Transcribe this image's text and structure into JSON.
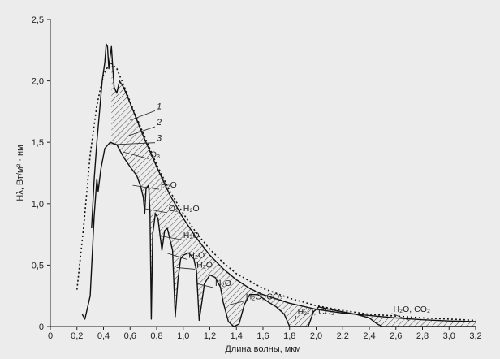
{
  "chart_data": {
    "type": "line",
    "title": "",
    "xlabel": "Длина волны, мкм",
    "ylabel": "Hλ, Вт/м² · нм",
    "xlim": [
      0,
      3.2
    ],
    "ylim": [
      0,
      2.5
    ],
    "x_ticks": [
      {
        "v": 0,
        "label": "0"
      },
      {
        "v": 0.2,
        "label": "0,2"
      },
      {
        "v": 0.4,
        "label": "0,4"
      },
      {
        "v": 0.6,
        "label": "0,6"
      },
      {
        "v": 0.8,
        "label": "0,8"
      },
      {
        "v": 1.0,
        "label": "1,0"
      },
      {
        "v": 1.2,
        "label": "1,2"
      },
      {
        "v": 1.4,
        "label": "1,4"
      },
      {
        "v": 1.6,
        "label": "1,6"
      },
      {
        "v": 1.8,
        "label": "1,8"
      },
      {
        "v": 2.0,
        "label": "2,0"
      },
      {
        "v": 2.2,
        "label": "2,2"
      },
      {
        "v": 2.4,
        "label": "2,4"
      },
      {
        "v": 2.6,
        "label": "2,6"
      },
      {
        "v": 2.8,
        "label": "2,8"
      },
      {
        "v": 3.0,
        "label": "3,0"
      },
      {
        "v": 3.2,
        "label": "3,2"
      }
    ],
    "y_ticks": [
      {
        "v": 0,
        "label": "0"
      },
      {
        "v": 0.5,
        "label": "0,5"
      },
      {
        "v": 1.0,
        "label": "1,0"
      },
      {
        "v": 1.5,
        "label": "1,5"
      },
      {
        "v": 2.0,
        "label": "2,0"
      },
      {
        "v": 2.5,
        "label": "2,5"
      }
    ],
    "grid": false,
    "series": [
      {
        "name": "1",
        "style": "solid",
        "points": [
          [
            0.31,
            0.8
          ],
          [
            0.33,
            1.2
          ],
          [
            0.35,
            1.5
          ],
          [
            0.37,
            1.75
          ],
          [
            0.39,
            2.0
          ],
          [
            0.41,
            2.15
          ],
          [
            0.42,
            2.3
          ],
          [
            0.43,
            2.28
          ],
          [
            0.44,
            2.1
          ],
          [
            0.45,
            2.2
          ],
          [
            0.46,
            2.28
          ],
          [
            0.47,
            2.1
          ],
          [
            0.48,
            1.95
          ],
          [
            0.5,
            1.9
          ],
          [
            0.52,
            2.0
          ],
          [
            0.55,
            1.95
          ],
          [
            0.6,
            1.82
          ],
          [
            0.7,
            1.55
          ],
          [
            0.8,
            1.3
          ],
          [
            0.9,
            1.07
          ],
          [
            1.0,
            0.88
          ],
          [
            1.1,
            0.72
          ],
          [
            1.2,
            0.58
          ],
          [
            1.3,
            0.47
          ],
          [
            1.4,
            0.38
          ],
          [
            1.5,
            0.31
          ],
          [
            1.6,
            0.26
          ],
          [
            1.8,
            0.19
          ],
          [
            2.0,
            0.14
          ],
          [
            2.2,
            0.11
          ],
          [
            2.4,
            0.09
          ],
          [
            2.6,
            0.07
          ],
          [
            2.8,
            0.055
          ],
          [
            3.0,
            0.045
          ],
          [
            3.2,
            0.04
          ]
        ]
      },
      {
        "name": "2",
        "style": "dotted",
        "points": [
          [
            0.2,
            0.3
          ],
          [
            0.25,
            0.8
          ],
          [
            0.3,
            1.4
          ],
          [
            0.35,
            1.8
          ],
          [
            0.4,
            2.05
          ],
          [
            0.45,
            2.15
          ],
          [
            0.5,
            2.1
          ],
          [
            0.55,
            1.97
          ],
          [
            0.6,
            1.83
          ],
          [
            0.7,
            1.57
          ],
          [
            0.8,
            1.32
          ],
          [
            0.9,
            1.1
          ],
          [
            1.0,
            0.92
          ],
          [
            1.1,
            0.76
          ],
          [
            1.2,
            0.63
          ],
          [
            1.3,
            0.52
          ],
          [
            1.4,
            0.43
          ],
          [
            1.6,
            0.31
          ],
          [
            1.8,
            0.23
          ],
          [
            2.0,
            0.17
          ],
          [
            2.2,
            0.13
          ],
          [
            2.4,
            0.1
          ],
          [
            2.6,
            0.085
          ],
          [
            2.8,
            0.07
          ],
          [
            3.0,
            0.06
          ],
          [
            3.2,
            0.05
          ]
        ]
      },
      {
        "name": "3",
        "style": "solid",
        "points": [
          [
            0.24,
            0.1
          ],
          [
            0.26,
            0.06
          ],
          [
            0.3,
            0.25
          ],
          [
            0.33,
            0.9
          ],
          [
            0.35,
            1.2
          ],
          [
            0.36,
            1.1
          ],
          [
            0.38,
            1.28
          ],
          [
            0.41,
            1.45
          ],
          [
            0.45,
            1.5
          ],
          [
            0.5,
            1.48
          ],
          [
            0.55,
            1.38
          ],
          [
            0.6,
            1.3
          ],
          [
            0.65,
            1.23
          ],
          [
            0.68,
            1.14
          ],
          [
            0.7,
            1.05
          ],
          [
            0.71,
            0.92
          ],
          [
            0.72,
            1.12
          ],
          [
            0.74,
            1.15
          ],
          [
            0.75,
            0.92
          ],
          [
            0.76,
            0.06
          ],
          [
            0.77,
            0.75
          ],
          [
            0.79,
            0.92
          ],
          [
            0.81,
            0.88
          ],
          [
            0.84,
            0.62
          ],
          [
            0.86,
            0.78
          ],
          [
            0.88,
            0.8
          ],
          [
            0.92,
            0.62
          ],
          [
            0.94,
            0.08
          ],
          [
            0.96,
            0.38
          ],
          [
            0.98,
            0.55
          ],
          [
            1.0,
            0.58
          ],
          [
            1.04,
            0.6
          ],
          [
            1.08,
            0.55
          ],
          [
            1.1,
            0.45
          ],
          [
            1.12,
            0.05
          ],
          [
            1.14,
            0.2
          ],
          [
            1.16,
            0.35
          ],
          [
            1.2,
            0.42
          ],
          [
            1.24,
            0.4
          ],
          [
            1.28,
            0.32
          ],
          [
            1.3,
            0.2
          ],
          [
            1.34,
            0.04
          ],
          [
            1.38,
            0.0
          ],
          [
            1.42,
            0.02
          ],
          [
            1.46,
            0.18
          ],
          [
            1.5,
            0.26
          ],
          [
            1.56,
            0.26
          ],
          [
            1.64,
            0.2
          ],
          [
            1.7,
            0.16
          ],
          [
            1.76,
            0.1
          ],
          [
            1.8,
            0.0
          ],
          [
            1.94,
            0.0
          ],
          [
            1.98,
            0.12
          ],
          [
            2.02,
            0.16
          ],
          [
            2.1,
            0.14
          ],
          [
            2.2,
            0.12
          ],
          [
            2.3,
            0.1
          ],
          [
            2.4,
            0.07
          ],
          [
            2.46,
            0.02
          ],
          [
            2.5,
            0.0
          ],
          [
            3.2,
            0.0
          ]
        ]
      }
    ],
    "annotations": [
      {
        "id": "n1",
        "text": "1",
        "x": 0.8,
        "y": 1.77,
        "lx": 0.6,
        "ly": 1.68,
        "italic": true
      },
      {
        "id": "n2",
        "text": "2",
        "x": 0.8,
        "y": 1.64,
        "lx": 0.58,
        "ly": 1.55,
        "italic": true
      },
      {
        "id": "n3",
        "text": "3",
        "x": 0.8,
        "y": 1.51,
        "lx": 0.45,
        "ly": 1.48,
        "italic": true
      },
      {
        "id": "o3",
        "text": "O₃",
        "x": 0.75,
        "y": 1.38,
        "lx": 0.55,
        "ly": 1.42
      },
      {
        "id": "h2o-1",
        "text": "H₂O",
        "x": 0.83,
        "y": 1.13,
        "lx": 0.62,
        "ly": 1.15
      },
      {
        "id": "o2h2o",
        "text": "O₂, H₂O",
        "x": 0.89,
        "y": 0.94,
        "lx": 0.71,
        "ly": 0.96
      },
      {
        "id": "h2o-2",
        "text": "H₂O",
        "x": 1.0,
        "y": 0.72,
        "lx": 0.81,
        "ly": 0.74
      },
      {
        "id": "h2o-3",
        "text": "H₂O",
        "x": 1.04,
        "y": 0.56,
        "lx": 0.87,
        "ly": 0.6
      },
      {
        "id": "h2o-4",
        "text": "H₂O",
        "x": 1.1,
        "y": 0.48,
        "lx": 0.95,
        "ly": 0.48
      },
      {
        "id": "h2o-5",
        "text": "H₂O",
        "x": 1.24,
        "y": 0.33,
        "lx": 1.1,
        "ly": 0.35
      },
      {
        "id": "h2oco2-1",
        "text": "H₂O, CO₂",
        "x": 1.47,
        "y": 0.22,
        "lx": 1.36,
        "ly": 0.18
      },
      {
        "id": "h2oco2-2",
        "text": "H₂O, CO₂",
        "x": 1.86,
        "y": 0.1,
        "lx": 1.84,
        "ly": 0.03
      },
      {
        "id": "h2oco2-3",
        "text": "H₂O, CO₂",
        "x": 2.58,
        "y": 0.12,
        "lx": 2.7,
        "ly": 0.05
      }
    ]
  }
}
